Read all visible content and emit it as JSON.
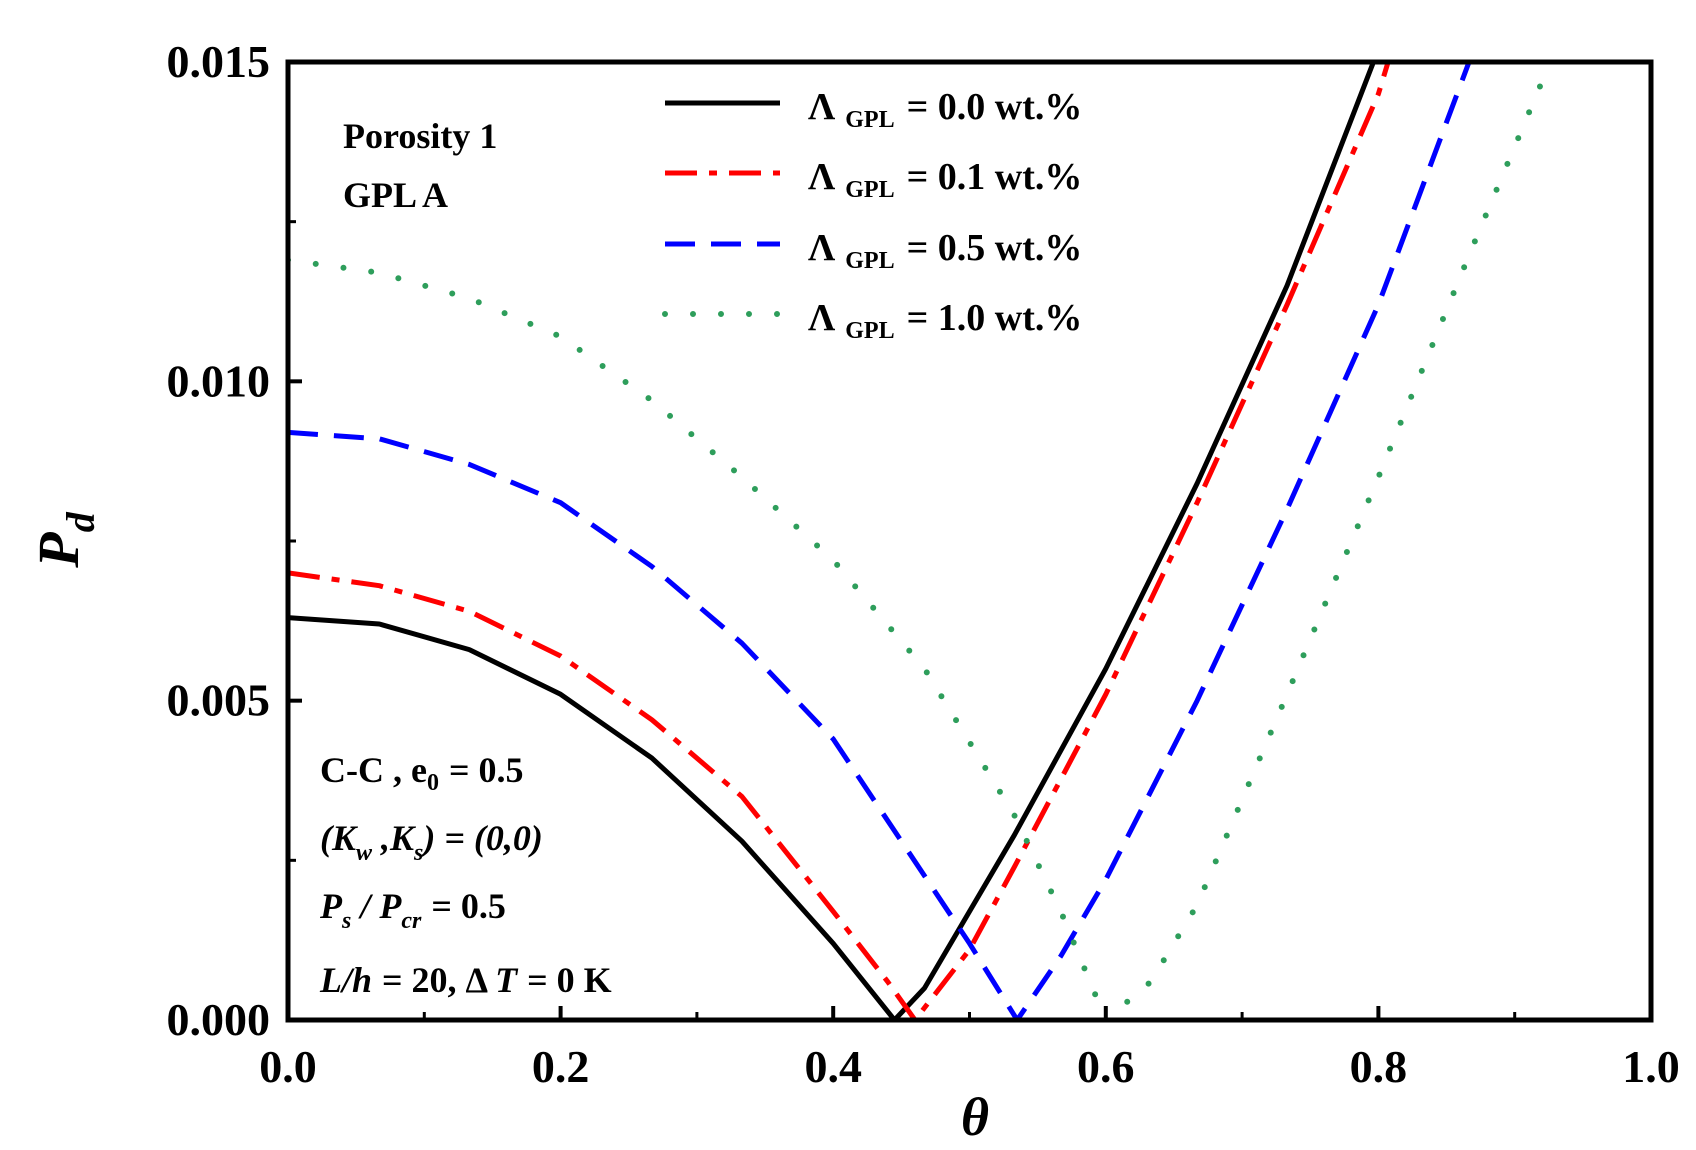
{
  "chart_data": {
    "type": "line",
    "xlabel": "θ",
    "ylabel": "P",
    "ylabel_sub": "d",
    "xlim": [
      0.0,
      1.0
    ],
    "ylim": [
      0.0,
      0.015
    ],
    "x_ticks": [
      "0.0",
      "0.2",
      "0.4",
      "0.6",
      "0.8",
      "1.0"
    ],
    "x_tick_values": [
      0.0,
      0.2,
      0.4,
      0.6,
      0.8,
      1.0
    ],
    "y_ticks": [
      "0.000",
      "0.005",
      "0.010",
      "0.015"
    ],
    "y_tick_values": [
      0.0,
      0.005,
      0.01,
      0.015
    ],
    "legend_position": "top-center",
    "series": [
      {
        "name": "Λ GPL = 0.0 wt.%",
        "label_main": "Λ",
        "label_sub": "GPL",
        "label_rest": "= 0.0 wt.%",
        "color": "#000000",
        "style": "solid",
        "x": [
          0.0,
          0.067,
          0.133,
          0.2,
          0.267,
          0.333,
          0.4,
          0.445,
          0.467,
          0.533,
          0.6,
          0.667,
          0.733,
          0.8
        ],
        "y": [
          0.0063,
          0.0062,
          0.0058,
          0.0051,
          0.0041,
          0.0028,
          0.0012,
          0.0,
          0.0005,
          0.0029,
          0.0055,
          0.0084,
          0.0115,
          0.0152
        ]
      },
      {
        "name": "Λ GPL = 0.1 wt.%",
        "label_main": "Λ",
        "label_sub": "GPL",
        "label_rest": "= 0.1 wt.%",
        "color": "#ff0000",
        "style": "dashdot",
        "x": [
          0.0,
          0.067,
          0.133,
          0.2,
          0.267,
          0.333,
          0.4,
          0.44,
          0.46,
          0.5,
          0.533,
          0.6,
          0.667,
          0.733,
          0.8,
          0.81
        ],
        "y": [
          0.007,
          0.0068,
          0.0064,
          0.0057,
          0.0047,
          0.0035,
          0.0017,
          0.0006,
          0.0,
          0.0011,
          0.0024,
          0.0051,
          0.0081,
          0.0112,
          0.0145,
          0.0152
        ]
      },
      {
        "name": "Λ GPL = 0.5 wt.%",
        "label_main": "Λ",
        "label_sub": "GPL",
        "label_rest": "= 0.5 wt.%",
        "color": "#0000ff",
        "style": "dashed",
        "x": [
          0.0,
          0.067,
          0.133,
          0.2,
          0.267,
          0.333,
          0.4,
          0.45,
          0.5,
          0.535,
          0.567,
          0.6,
          0.667,
          0.733,
          0.8,
          0.87
        ],
        "y": [
          0.0092,
          0.0091,
          0.0087,
          0.0081,
          0.0071,
          0.0059,
          0.0044,
          0.0028,
          0.0012,
          0.0,
          0.001,
          0.0022,
          0.005,
          0.008,
          0.0112,
          0.0152
        ]
      },
      {
        "name": "Λ GPL = 1.0 wt.%",
        "label_main": "Λ",
        "label_sub": "GPL",
        "label_rest": "= 1.0 wt.%",
        "color": "#2e9e5b",
        "style": "dotted",
        "x": [
          0.0,
          0.067,
          0.133,
          0.2,
          0.267,
          0.333,
          0.4,
          0.467,
          0.533,
          0.567,
          0.6,
          0.633,
          0.667,
          0.733,
          0.8,
          0.867,
          0.93
        ],
        "y": [
          0.0119,
          0.0117,
          0.0113,
          0.0107,
          0.0097,
          0.0085,
          0.0072,
          0.0055,
          0.0032,
          0.0017,
          0.0,
          0.0006,
          0.0018,
          0.0051,
          0.0085,
          0.012,
          0.0152
        ]
      }
    ],
    "annotations": {
      "porosity": "Porosity 1",
      "gpl": "GPL A",
      "bc_text": "C-C , e",
      "bc_sub": "0",
      "bc_rest": "= 0.5",
      "kw_open": "(K",
      "kw_sub": "w",
      "ks_mid": " ,K",
      "ks_sub": "s",
      "k_rest": ") = (0,0)",
      "ps_main": "P",
      "ps_sub": "s",
      "pcr_mid": " / P",
      "pcr_sub": "cr",
      "ratio_rest": "= 0.5",
      "lh_text": "L/h",
      "lh_rest": "= 20,  Δ ",
      "t_text": "T",
      "t_rest": "= 0 K"
    }
  }
}
